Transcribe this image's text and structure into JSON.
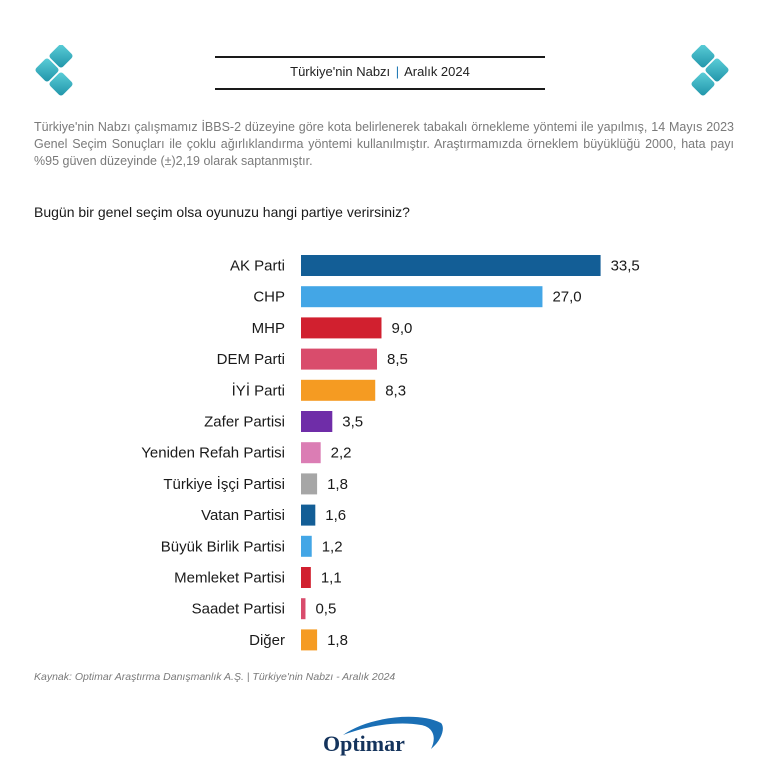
{
  "header": {
    "title": "Türkiye'nin Nabzı",
    "separator": "|",
    "date": "Aralık 2024"
  },
  "intro": "Türkiye'nin Nabzı çalışmamız İBBS-2 düzeyine göre kota belirlenerek tabakalı örnekleme yöntemi ile yapılmış, 14 Mayıs 2023 Genel Seçim Sonuçları ile çoklu ağırlıklandırma yöntemi kullanılmıştır. Araştırmamızda örneklem büyüklüğü 2000, hata payı %95 güven düzeyinde (±)2,19 olarak saptanmıştır.",
  "question": "Bugün bir genel seçim olsa oyunuzu hangi partiye verirsiniz?",
  "source": "Kaynak: Optimar Araştırma Danışmanlık A.Ş. | Türkiye'nin Nabzı - Aralık 2024",
  "brand": {
    "name": "Optimar"
  },
  "colors": {
    "accent": "#1f78b4",
    "logo_teal": "#2fa8b8"
  },
  "chart_data": {
    "type": "bar",
    "orientation": "horizontal",
    "title": "Bugün bir genel seçim olsa oyunuzu hangi partiye verirsiniz?",
    "categories": [
      "AK Parti",
      "CHP",
      "MHP",
      "DEM Parti",
      "İYİ Parti",
      "Zafer Partisi",
      "Yeniden Refah Partisi",
      "Türkiye İşçi Partisi",
      "Vatan Partisi",
      "Büyük Birlik Partisi",
      "Memleket Partisi",
      "Saadet Partisi",
      "Diğer"
    ],
    "values": [
      33.5,
      27.0,
      9.0,
      8.5,
      8.3,
      3.5,
      2.2,
      1.8,
      1.6,
      1.2,
      1.1,
      0.5,
      1.8
    ],
    "value_labels": [
      "33,5",
      "27,0",
      "9,0",
      "8,5",
      "8,3",
      "3,5",
      "2,2",
      "1,8",
      "1,6",
      "1,2",
      "1,1",
      "0,5",
      "1,8"
    ],
    "colors": [
      "#135e96",
      "#43a6e6",
      "#d1202f",
      "#d94c6c",
      "#f59b22",
      "#6f2da8",
      "#db7db4",
      "#a6a6a6",
      "#135e96",
      "#43a6e6",
      "#d1202f",
      "#d94c6c",
      "#f59b22"
    ],
    "xlim": [
      0,
      35
    ],
    "grid": false,
    "legend": "none"
  }
}
